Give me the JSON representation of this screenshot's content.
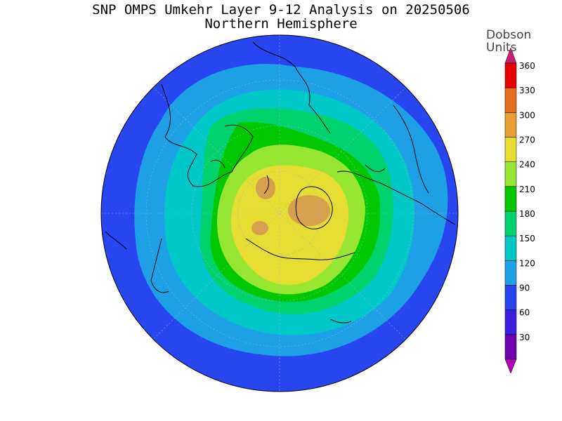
{
  "title": "SNP OMPS Umkehr Layer 9-12 Analysis on 20250506",
  "subtitle": "Northern Hemisphere",
  "legend": {
    "units_line1": "Dobson",
    "units_line2": "Units",
    "levels": [
      {
        "label": "30",
        "color": "#7000b0"
      },
      {
        "label": "60",
        "color": "#3c1ee0"
      },
      {
        "label": "90",
        "color": "#2846f0"
      },
      {
        "label": "120",
        "color": "#1ea0e6"
      },
      {
        "label": "150",
        "color": "#00c8c8"
      },
      {
        "label": "180",
        "color": "#00d26e"
      },
      {
        "label": "210",
        "color": "#00c800"
      },
      {
        "label": "240",
        "color": "#96e632"
      },
      {
        "label": "270",
        "color": "#e6dc32"
      },
      {
        "label": "300",
        "color": "#e6a032"
      },
      {
        "label": "330",
        "color": "#e66e1e"
      },
      {
        "label": "360",
        "color": "#e60000"
      }
    ],
    "below_color": "#b400b4",
    "above_color": "#c81e78"
  },
  "map": {
    "projection": "polar stereographic",
    "hemisphere": "north",
    "field_colors": {
      "outer": "#2846f0",
      "ring120": "#1ea0e6",
      "ring150": "#00c8c8",
      "ring180": "#00d26e",
      "ring210": "#00c800",
      "ring240": "#96e632",
      "core270": "#e6dc32",
      "peak300": "#d8a04a"
    }
  }
}
